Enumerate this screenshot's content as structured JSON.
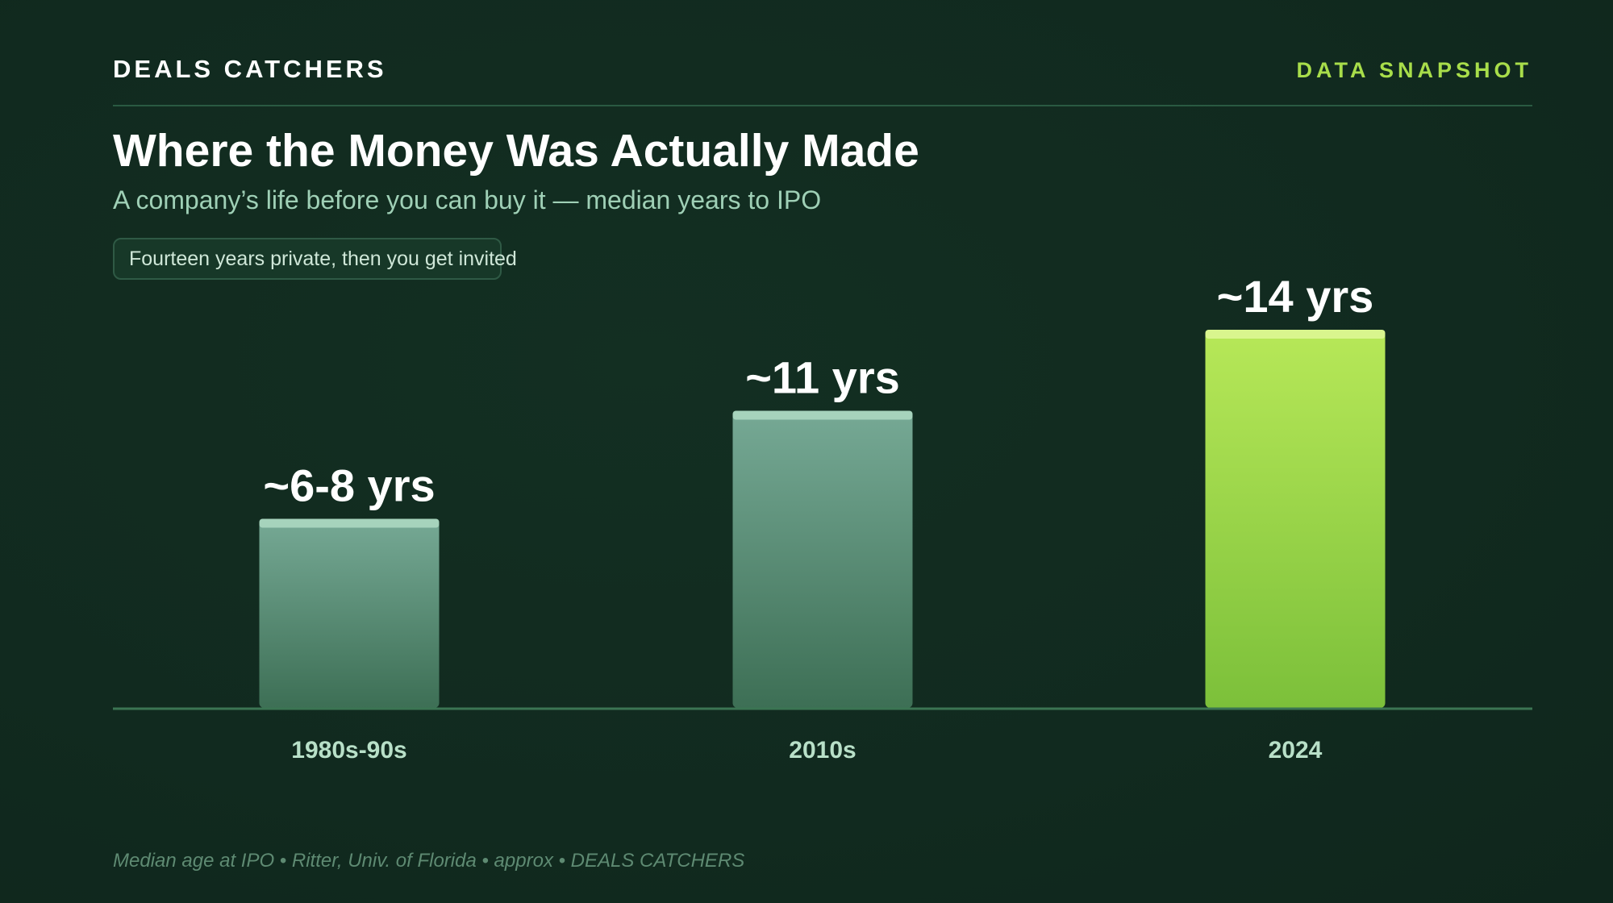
{
  "header": {
    "brand": "DEALS CATCHERS",
    "tag": "DATA SNAPSHOT"
  },
  "title": "Where the Money Was Actually Made",
  "subtitle": "A company’s life before you can buy it — median years to IPO",
  "callout": "Fourteen years private, then you get invited",
  "footer": "Median age at IPO • Ritter, Univ. of Florida • approx • DEALS CATCHERS",
  "colors": {
    "background": "#112a1f",
    "accent": "#a8dd4a",
    "muted_bar": "#5f9b80",
    "highlight_bar": "#9ed64a"
  },
  "chart_data": {
    "type": "bar",
    "title": "Where the Money Was Actually Made",
    "subtitle": "A company’s life before you can buy it — median years to IPO",
    "xlabel": "",
    "ylabel": "",
    "categories": [
      "1980s-90s",
      "2010s",
      "2024"
    ],
    "values": [
      7,
      11,
      14
    ],
    "data_labels": [
      "~6-8 yrs",
      "~11 yrs",
      "~14 yrs"
    ],
    "highlight": "2024",
    "ylim": [
      0,
      14
    ],
    "grid": false,
    "legend": "none"
  }
}
